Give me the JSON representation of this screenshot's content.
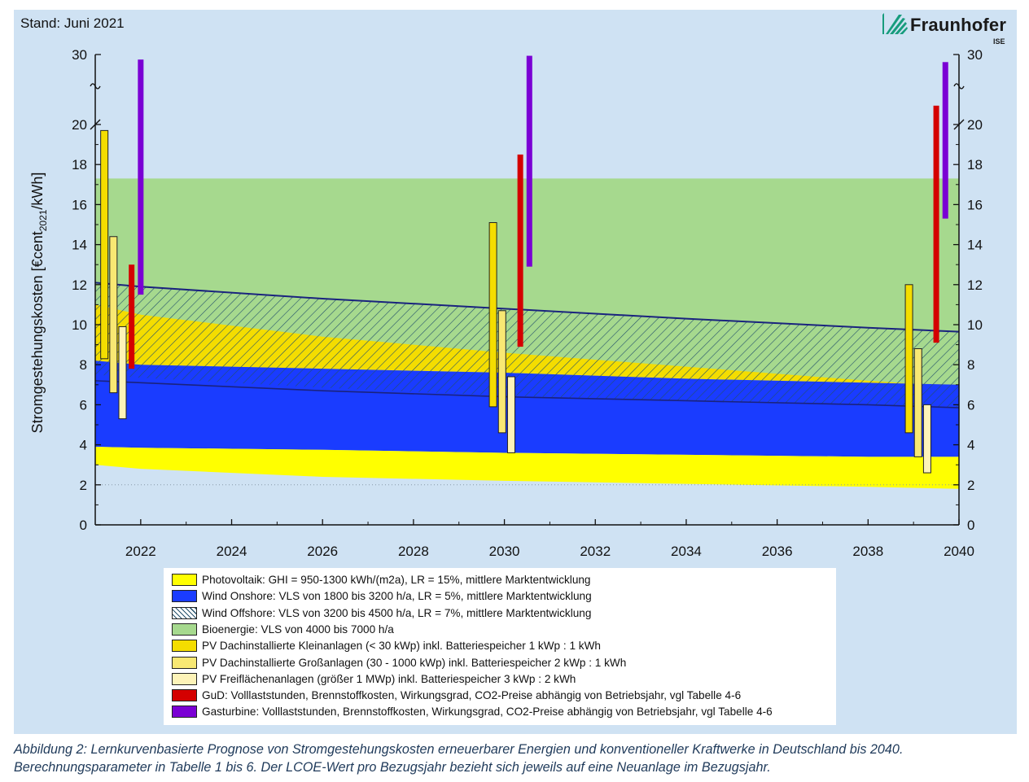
{
  "header": {
    "stand": "Stand: Juni 2021",
    "brand": "Fraunhofer",
    "brand_sub": "ISE"
  },
  "colors": {
    "panel_bg": "#cfe2f3",
    "pv": "#ffff00",
    "wind_onshore": "#1a3cff",
    "wind_offshore_hatch": "#23506a",
    "bio": "#a6d98e",
    "pv_small": "#f4dd00",
    "pv_large": "#f8e873",
    "pv_field": "#fdf3b8",
    "gud": "#d40000",
    "gas_turbine": "#7a00d4",
    "line_dark": "#1a237e"
  },
  "chart_data": {
    "type": "area",
    "ylabel": "Stromgestehungskosten [€cent2021/kWh]",
    "xlim": [
      2021,
      2040
    ],
    "ylim": [
      0,
      30
    ],
    "axis_break": {
      "from": 21,
      "to": 29
    },
    "x_ticks": [
      2022,
      2024,
      2026,
      2028,
      2030,
      2032,
      2034,
      2036,
      2038,
      2040
    ],
    "y_ticks": [
      0,
      2,
      4,
      6,
      8,
      10,
      12,
      14,
      16,
      18,
      20,
      30
    ],
    "areas": [
      {
        "name": "Photovoltaik",
        "x": [
          2021,
          2022,
          2026,
          2030,
          2034,
          2038,
          2040
        ],
        "lower": [
          3.0,
          2.8,
          2.4,
          2.2,
          2.05,
          1.9,
          1.8
        ],
        "upper": [
          3.9,
          3.85,
          3.75,
          3.6,
          3.5,
          3.4,
          3.4
        ]
      },
      {
        "name": "Wind Onshore",
        "x": [
          2021,
          2022,
          2026,
          2030,
          2034,
          2038,
          2040
        ],
        "lower": [
          3.9,
          3.85,
          3.75,
          3.6,
          3.5,
          3.4,
          3.4
        ],
        "upper": [
          8.2,
          8.0,
          7.8,
          7.6,
          7.3,
          7.1,
          7.0
        ],
        "mid": [
          7.2,
          7.1,
          6.7,
          6.4,
          6.2,
          6.0,
          5.85
        ]
      },
      {
        "name": "Wind Offshore",
        "x": [
          2021,
          2022,
          2026,
          2030,
          2034,
          2038,
          2040
        ],
        "lower": [
          7.5,
          7.35,
          6.85,
          6.45,
          6.2,
          6.0,
          5.85
        ],
        "upper": [
          12.1,
          11.9,
          11.3,
          10.8,
          10.3,
          9.85,
          9.65
        ]
      },
      {
        "name": "Bioenergie",
        "x": [
          2021,
          2040
        ],
        "lower": [
          8.2,
          7.0
        ],
        "upper": [
          17.3,
          17.3
        ]
      }
    ],
    "bars": [
      {
        "series": "PV klein",
        "x": 2021.2,
        "low": 8.3,
        "high": 19.7
      },
      {
        "series": "PV gross",
        "x": 2021.4,
        "low": 6.6,
        "high": 14.4
      },
      {
        "series": "PV frei",
        "x": 2021.6,
        "low": 5.3,
        "high": 9.9
      },
      {
        "series": "GuD",
        "x": 2021.8,
        "low": 7.8,
        "high": 13.0
      },
      {
        "series": "Gasturbine",
        "x": 2022.0,
        "low": 11.5,
        "high": 29.2
      },
      {
        "series": "PV klein",
        "x": 2029.75,
        "low": 5.9,
        "high": 15.1
      },
      {
        "series": "PV gross",
        "x": 2029.95,
        "low": 4.6,
        "high": 10.7
      },
      {
        "series": "PV frei",
        "x": 2030.15,
        "low": 3.6,
        "high": 7.4
      },
      {
        "series": "GuD",
        "x": 2030.35,
        "low": 8.9,
        "high": 18.5
      },
      {
        "series": "Gasturbine",
        "x": 2030.55,
        "low": 12.9,
        "high": 29.8
      },
      {
        "series": "PV klein",
        "x": 2038.9,
        "low": 4.6,
        "high": 12.0
      },
      {
        "series": "PV gross",
        "x": 2039.1,
        "low": 3.4,
        "high": 8.8
      },
      {
        "series": "PV frei",
        "x": 2039.3,
        "low": 2.6,
        "high": 6.0
      },
      {
        "series": "GuD",
        "x": 2039.5,
        "low": 9.1,
        "high": 21.9
      },
      {
        "series": "Gasturbine",
        "x": 2039.7,
        "low": 15.3,
        "high": 28.8
      }
    ],
    "legend": [
      {
        "label": "Photovoltaik: GHI = 950-1300 kWh/(m2a), LR = 15%, mittlere Marktentwicklung",
        "color": "#ffff00"
      },
      {
        "label": "Wind Onshore: VLS von 1800 bis 3200 h/a, LR = 5%, mittlere Marktentwicklung",
        "color": "#1a3cff"
      },
      {
        "label": "Wind Offshore: VLS von 3200 bis 4500 h/a, LR = 7%, mittlere Marktentwicklung",
        "color": "hatch"
      },
      {
        "label": "Bioenergie: VLS von 4000 bis 7000 h/a",
        "color": "#a6d98e"
      },
      {
        "label": "PV Dachinstallierte Kleinanlagen (< 30 kWp) inkl. Batteriespeicher 1 kWp : 1 kWh",
        "color": "#f4dd00"
      },
      {
        "label": "PV Dachinstallierte Großanlagen (30 - 1000 kWp) inkl. Batteriespeicher 2 kWp : 1 kWh",
        "color": "#f8e873"
      },
      {
        "label": "PV Freiflächenanlagen (größer 1 MWp) inkl. Batteriespeicher 3 kWp : 2 kWh",
        "color": "#fdf3b8"
      },
      {
        "label": "GuD: Volllaststunden, Brennstoffkosten, Wirkungsgrad, CO2-Preise abhängig von Betriebsjahr, vgl Tabelle 4-6",
        "color": "#d40000"
      },
      {
        "label": "Gasturbine: Volllaststunden, Brennstoffkosten, Wirkungsgrad, CO2-Preise abhängig von Betriebsjahr, vgl Tabelle 4-6",
        "color": "#7a00d4"
      }
    ]
  },
  "caption": {
    "text": "Abbildung 2: Lernkurvenbasierte Prognose von Stromgestehungskosten erneuerbarer Energien und konventioneller Kraftwerke in Deutschland bis 2040. Berechnungsparameter in Tabelle 1 bis 6. Der LCOE-Wert pro Bezugsjahr bezieht sich jeweils auf eine Neuanlage im Bezugsjahr."
  }
}
